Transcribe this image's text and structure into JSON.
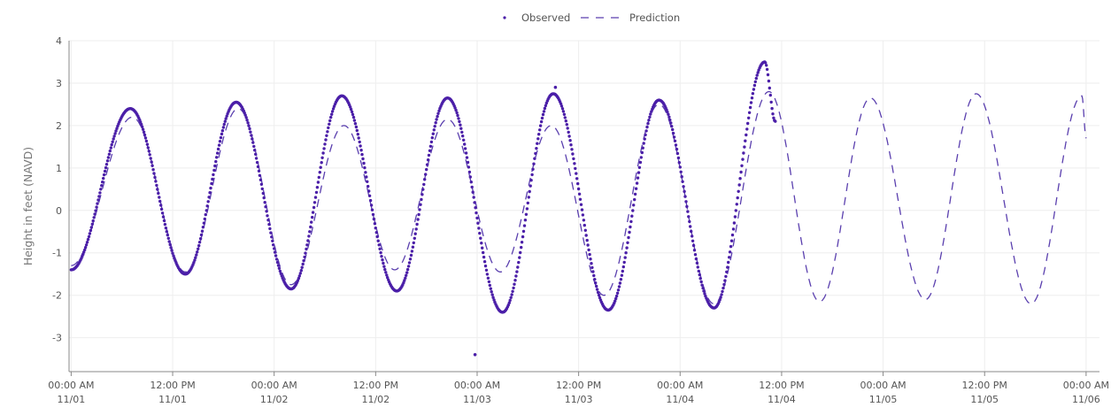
{
  "chart_data": {
    "type": "line",
    "title": "",
    "xlabel": "",
    "ylabel": "Height in feet (NAVD)",
    "ylim": [
      -3.8,
      4
    ],
    "y_ticks": [
      -3,
      -2,
      -1,
      0,
      1,
      2,
      3,
      4
    ],
    "x_range_hours": [
      -15,
      1295
    ],
    "x_ticks": [
      {
        "hours": 0,
        "line1": "00:00 AM",
        "line2": "11/01"
      },
      {
        "hours": 720,
        "line1": "12:00 PM",
        "line2": "11/01"
      },
      {
        "hours": 1440,
        "line1": "00:00 AM",
        "line2": "11/02"
      },
      {
        "hours": 2160,
        "line1": "12:00 PM",
        "line2": "11/02"
      },
      {
        "hours": 2880,
        "line1": "00:00 AM",
        "line2": "11/03"
      },
      {
        "hours": 3600,
        "line1": "12:00 PM",
        "line2": "11/03"
      },
      {
        "hours": 4320,
        "line1": "00:00 AM",
        "line2": "11/04"
      },
      {
        "hours": 5040,
        "line1": "12:00 PM",
        "line2": "11/04"
      },
      {
        "hours": 5760,
        "line1": "00:00 AM",
        "line2": "11/05"
      },
      {
        "hours": 6480,
        "line1": "12:00 PM",
        "line2": "11/05"
      },
      {
        "hours": 7200,
        "line1": "00:00 AM",
        "line2": "11/06"
      }
    ],
    "grid": true,
    "legend_position": "top-center",
    "series": [
      {
        "name": "Observed",
        "style": "dots",
        "color": "#4b1fa8",
        "extrema": [
          {
            "t": "11/01 00:00",
            "v": -1.4
          },
          {
            "t": "11/01 07:00",
            "v": 2.4
          },
          {
            "t": "11/01 13:30",
            "v": -1.5
          },
          {
            "t": "11/01 19:30",
            "v": 2.55
          },
          {
            "t": "11/02 02:00",
            "v": -1.85
          },
          {
            "t": "11/02 08:00",
            "v": 2.7
          },
          {
            "t": "11/02 14:30",
            "v": -1.9
          },
          {
            "t": "11/02 20:30",
            "v": 2.65
          },
          {
            "t": "11/03 03:00",
            "v": -2.4
          },
          {
            "t": "11/03 09:00",
            "v": 2.75
          },
          {
            "t": "11/03 15:30",
            "v": -2.35
          },
          {
            "t": "11/03 21:30",
            "v": 2.6
          },
          {
            "t": "11/04 04:00",
            "v": -2.3
          },
          {
            "t": "11/04 10:00",
            "v": 3.5
          },
          {
            "t": "11/04 11:15",
            "v": 2.1
          }
        ],
        "outliers": [
          {
            "t": "11/02 23:45",
            "v": -3.4
          },
          {
            "t": "11/03 09:15",
            "v": 2.9
          }
        ]
      },
      {
        "name": "Prediction",
        "style": "dashed",
        "color": "#5a3fae",
        "extrema": [
          {
            "t": "11/01 00:00",
            "v": -1.3
          },
          {
            "t": "11/01 07:15",
            "v": 2.2
          },
          {
            "t": "11/01 13:30",
            "v": -1.45
          },
          {
            "t": "11/01 19:45",
            "v": 2.4
          },
          {
            "t": "11/02 02:00",
            "v": -1.75
          },
          {
            "t": "11/02 08:15",
            "v": 2.0
          },
          {
            "t": "11/02 14:15",
            "v": -1.4
          },
          {
            "t": "11/02 20:30",
            "v": 2.15
          },
          {
            "t": "11/03 02:45",
            "v": -1.45
          },
          {
            "t": "11/03 08:45",
            "v": 2.0
          },
          {
            "t": "11/03 15:00",
            "v": -2.0
          },
          {
            "t": "11/03 21:30",
            "v": 2.5
          },
          {
            "t": "11/04 04:00",
            "v": -2.2
          },
          {
            "t": "11/04 10:30",
            "v": 2.8
          },
          {
            "t": "11/04 16:30",
            "v": -2.15
          },
          {
            "t": "11/04 22:30",
            "v": 2.65
          },
          {
            "t": "11/05 05:00",
            "v": -2.1
          },
          {
            "t": "11/05 11:00",
            "v": 2.75
          },
          {
            "t": "11/05 17:30",
            "v": -2.2
          },
          {
            "t": "11/05 23:30",
            "v": 2.7
          },
          {
            "t": "11/06 00:00",
            "v": 1.7
          }
        ]
      }
    ]
  }
}
